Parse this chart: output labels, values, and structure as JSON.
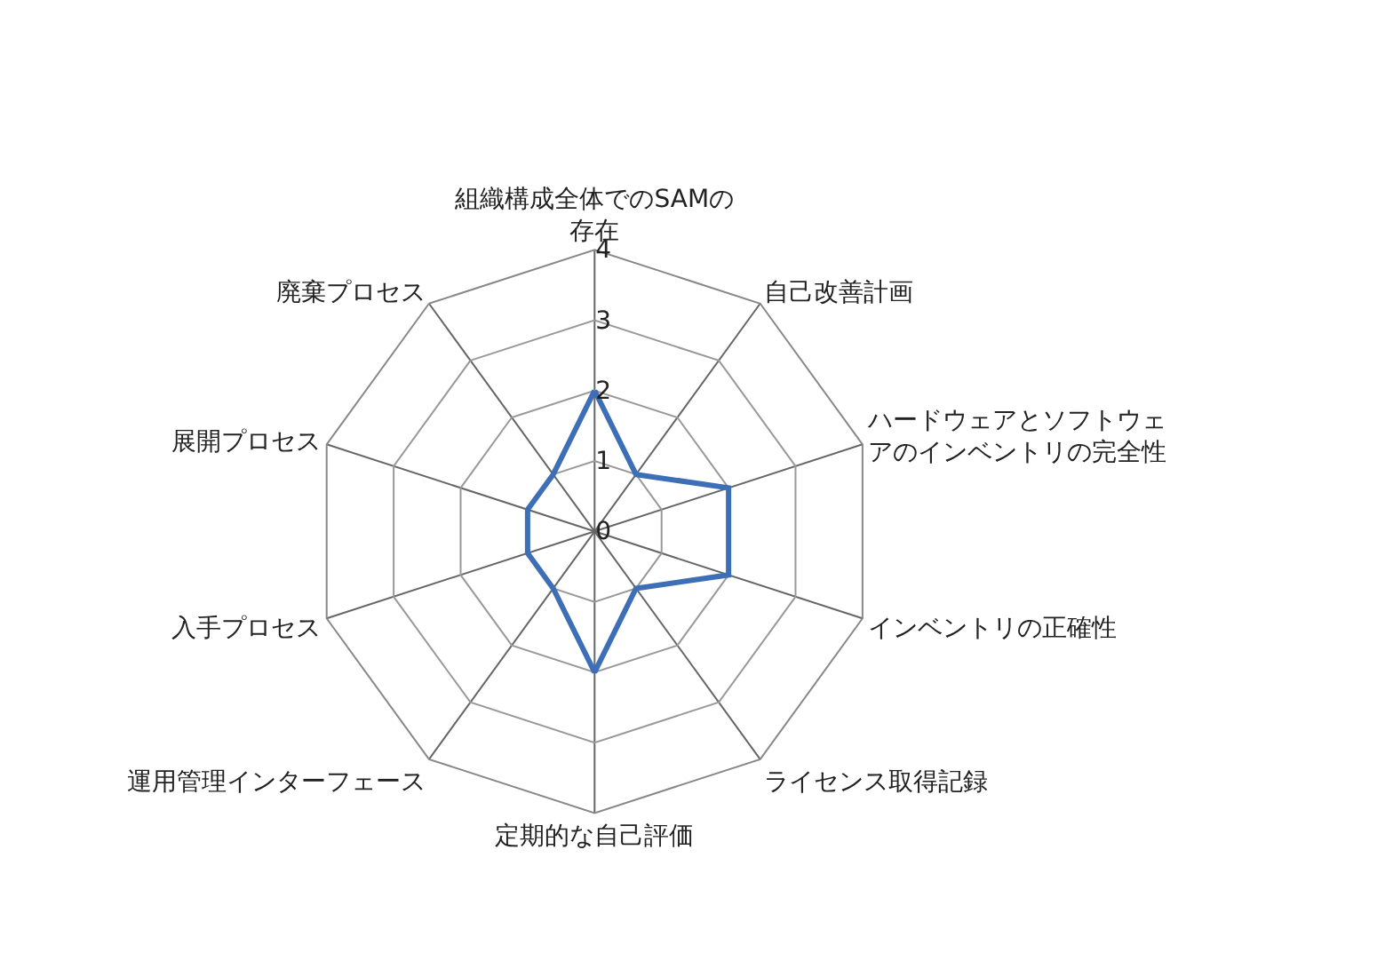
{
  "chart_data": {
    "type": "radar",
    "categories": [
      "組織構成全体でのSAMの存在",
      "自己改善計画",
      "ハードウェアとソフトウェアのインベントリの完全性",
      "インベントリの正確性",
      "ライセンス取得記録",
      "定期的な自己評価",
      "運用管理インターフェース",
      "入手プロセス",
      "展開プロセス",
      "廃棄プロセス"
    ],
    "series": [
      {
        "color": "#3d6fb6",
        "values": [
          2,
          1,
          2,
          2,
          1,
          2,
          1,
          1,
          1,
          1
        ]
      }
    ],
    "ylim": [
      0,
      4
    ],
    "yticks": [
      0,
      1,
      2,
      3,
      4
    ],
    "grid": true,
    "marker": "none",
    "line_style": "solid"
  }
}
